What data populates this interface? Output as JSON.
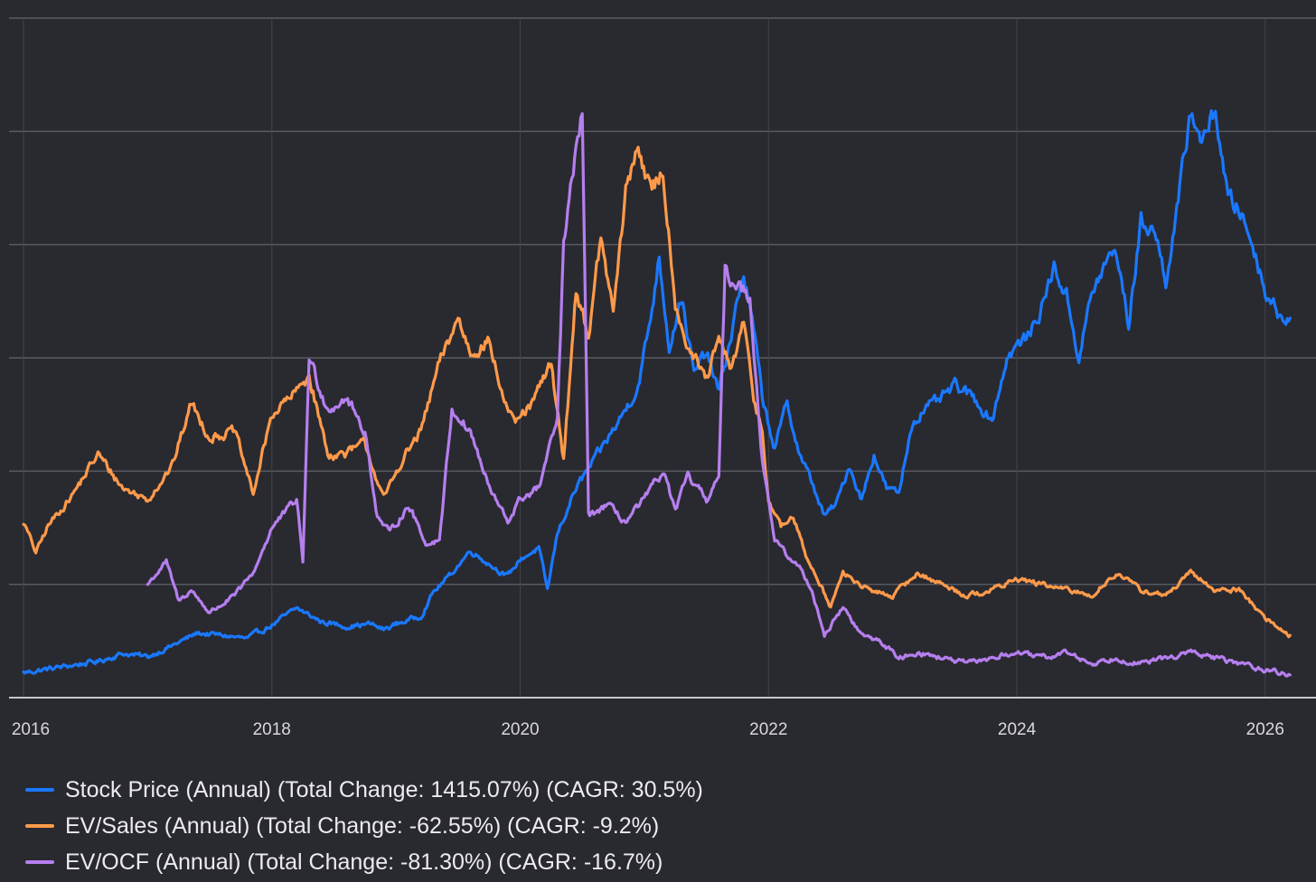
{
  "chart_data": {
    "type": "line",
    "title": "",
    "xlabel": "",
    "ylabel": "",
    "x_ticks": [
      "2016",
      "2018",
      "2020",
      "2022",
      "2024",
      "2026"
    ],
    "x_tick_values": [
      2016,
      2018,
      2020,
      2022,
      2024,
      2026
    ],
    "xlim": [
      2016,
      2026.3
    ],
    "ylim": [
      0,
      6
    ],
    "y_gridlines": [
      1,
      2,
      3,
      4,
      5,
      6
    ],
    "y_tick_labels_visible": false,
    "legend_position": "bottom-left",
    "series": [
      {
        "name": "Stock Price (Annual) (Total Change: 1415.07%) (CAGR: 30.5%)",
        "color": "#1a78ff",
        "points": [
          [
            2016.0,
            0.22
          ],
          [
            2016.3,
            0.27
          ],
          [
            2016.6,
            0.32
          ],
          [
            2016.8,
            0.39
          ],
          [
            2017.0,
            0.36
          ],
          [
            2017.2,
            0.46
          ],
          [
            2017.4,
            0.57
          ],
          [
            2017.6,
            0.55
          ],
          [
            2017.8,
            0.52
          ],
          [
            2018.0,
            0.64
          ],
          [
            2018.2,
            0.79
          ],
          [
            2018.4,
            0.67
          ],
          [
            2018.6,
            0.63
          ],
          [
            2018.8,
            0.65
          ],
          [
            2018.9,
            0.6
          ],
          [
            2019.0,
            0.65
          ],
          [
            2019.2,
            0.72
          ],
          [
            2019.3,
            0.93
          ],
          [
            2019.45,
            1.1
          ],
          [
            2019.6,
            1.3
          ],
          [
            2019.75,
            1.18
          ],
          [
            2019.9,
            1.07
          ],
          [
            2020.0,
            1.22
          ],
          [
            2020.15,
            1.32
          ],
          [
            2020.22,
            0.95
          ],
          [
            2020.3,
            1.45
          ],
          [
            2020.45,
            1.85
          ],
          [
            2020.6,
            2.1
          ],
          [
            2020.8,
            2.45
          ],
          [
            2020.95,
            2.75
          ],
          [
            2021.05,
            3.35
          ],
          [
            2021.12,
            3.9
          ],
          [
            2021.2,
            3.1
          ],
          [
            2021.3,
            3.55
          ],
          [
            2021.4,
            2.85
          ],
          [
            2021.5,
            3.05
          ],
          [
            2021.6,
            2.7
          ],
          [
            2021.7,
            3.2
          ],
          [
            2021.75,
            3.5
          ],
          [
            2021.8,
            3.75
          ],
          [
            2021.88,
            3.25
          ],
          [
            2021.95,
            2.65
          ],
          [
            2022.05,
            2.2
          ],
          [
            2022.15,
            2.6
          ],
          [
            2022.25,
            2.15
          ],
          [
            2022.35,
            1.9
          ],
          [
            2022.45,
            1.6
          ],
          [
            2022.55,
            1.72
          ],
          [
            2022.65,
            2.05
          ],
          [
            2022.75,
            1.75
          ],
          [
            2022.85,
            2.15
          ],
          [
            2022.95,
            1.85
          ],
          [
            2023.05,
            1.8
          ],
          [
            2023.15,
            2.4
          ],
          [
            2023.25,
            2.55
          ],
          [
            2023.35,
            2.6
          ],
          [
            2023.5,
            2.75
          ],
          [
            2023.65,
            2.65
          ],
          [
            2023.8,
            2.45
          ],
          [
            2023.92,
            3.0
          ],
          [
            2024.0,
            3.1
          ],
          [
            2024.1,
            3.2
          ],
          [
            2024.2,
            3.45
          ],
          [
            2024.3,
            3.8
          ],
          [
            2024.4,
            3.55
          ],
          [
            2024.5,
            3.0
          ],
          [
            2024.6,
            3.55
          ],
          [
            2024.7,
            3.8
          ],
          [
            2024.8,
            3.95
          ],
          [
            2024.9,
            3.3
          ],
          [
            2025.0,
            4.2
          ],
          [
            2025.1,
            4.15
          ],
          [
            2025.2,
            3.7
          ],
          [
            2025.3,
            4.35
          ],
          [
            2025.4,
            5.2
          ],
          [
            2025.5,
            4.9
          ],
          [
            2025.6,
            5.2
          ],
          [
            2025.7,
            4.4
          ],
          [
            2025.8,
            4.3
          ],
          [
            2025.9,
            4.0
          ],
          [
            2026.0,
            3.6
          ],
          [
            2026.1,
            3.4
          ],
          [
            2026.2,
            3.35
          ]
        ]
      },
      {
        "name": "EV/Sales (Annual) (Total Change: -62.55%) (CAGR: -9.2%)",
        "color": "#ff9a4a",
        "points": [
          [
            2016.0,
            1.55
          ],
          [
            2016.1,
            1.28
          ],
          [
            2016.2,
            1.52
          ],
          [
            2016.4,
            1.8
          ],
          [
            2016.6,
            2.15
          ],
          [
            2016.8,
            1.85
          ],
          [
            2017.0,
            1.75
          ],
          [
            2017.2,
            2.05
          ],
          [
            2017.35,
            2.6
          ],
          [
            2017.5,
            2.3
          ],
          [
            2017.7,
            2.35
          ],
          [
            2017.85,
            1.8
          ],
          [
            2018.0,
            2.5
          ],
          [
            2018.2,
            2.7
          ],
          [
            2018.3,
            2.85
          ],
          [
            2018.45,
            2.15
          ],
          [
            2018.6,
            2.15
          ],
          [
            2018.75,
            2.25
          ],
          [
            2018.9,
            1.75
          ],
          [
            2019.05,
            2.1
          ],
          [
            2019.2,
            2.35
          ],
          [
            2019.35,
            2.95
          ],
          [
            2019.5,
            3.35
          ],
          [
            2019.6,
            3.05
          ],
          [
            2019.75,
            3.15
          ],
          [
            2019.85,
            2.7
          ],
          [
            2019.95,
            2.4
          ],
          [
            2020.1,
            2.6
          ],
          [
            2020.25,
            2.95
          ],
          [
            2020.35,
            2.1
          ],
          [
            2020.45,
            3.6
          ],
          [
            2020.55,
            3.2
          ],
          [
            2020.65,
            4.05
          ],
          [
            2020.75,
            3.4
          ],
          [
            2020.85,
            4.45
          ],
          [
            2020.95,
            4.9
          ],
          [
            2021.05,
            4.45
          ],
          [
            2021.15,
            4.65
          ],
          [
            2021.25,
            3.5
          ],
          [
            2021.35,
            3.1
          ],
          [
            2021.5,
            2.8
          ],
          [
            2021.6,
            3.15
          ],
          [
            2021.7,
            2.9
          ],
          [
            2021.8,
            3.3
          ],
          [
            2021.88,
            2.65
          ],
          [
            2021.95,
            2.35
          ],
          [
            2022.0,
            1.75
          ],
          [
            2022.1,
            1.5
          ],
          [
            2022.2,
            1.6
          ],
          [
            2022.3,
            1.25
          ],
          [
            2022.4,
            1.05
          ],
          [
            2022.5,
            0.8
          ],
          [
            2022.6,
            1.1
          ],
          [
            2022.8,
            0.95
          ],
          [
            2023.0,
            0.9
          ],
          [
            2023.2,
            1.1
          ],
          [
            2023.4,
            1.0
          ],
          [
            2023.6,
            0.9
          ],
          [
            2023.8,
            0.95
          ],
          [
            2024.0,
            1.05
          ],
          [
            2024.2,
            1.0
          ],
          [
            2024.4,
            0.95
          ],
          [
            2024.6,
            0.9
          ],
          [
            2024.8,
            1.1
          ],
          [
            2025.0,
            0.95
          ],
          [
            2025.2,
            0.9
          ],
          [
            2025.4,
            1.1
          ],
          [
            2025.6,
            0.95
          ],
          [
            2025.8,
            0.95
          ],
          [
            2026.0,
            0.7
          ],
          [
            2026.2,
            0.55
          ]
        ]
      },
      {
        "name": "EV/OCF (Annual) (Total Change: -81.30%) (CAGR: -16.7%)",
        "color": "#b57fee",
        "points": [
          [
            2017.0,
            1.0
          ],
          [
            2017.15,
            1.2
          ],
          [
            2017.25,
            0.85
          ],
          [
            2017.35,
            0.95
          ],
          [
            2017.5,
            0.75
          ],
          [
            2017.7,
            0.9
          ],
          [
            2017.85,
            1.1
          ],
          [
            2018.0,
            1.5
          ],
          [
            2018.2,
            1.75
          ],
          [
            2018.25,
            1.2
          ],
          [
            2018.3,
            3.0
          ],
          [
            2018.45,
            2.55
          ],
          [
            2018.6,
            2.65
          ],
          [
            2018.75,
            2.35
          ],
          [
            2018.85,
            1.6
          ],
          [
            2018.95,
            1.45
          ],
          [
            2019.1,
            1.7
          ],
          [
            2019.25,
            1.35
          ],
          [
            2019.35,
            1.4
          ],
          [
            2019.45,
            2.55
          ],
          [
            2019.6,
            2.35
          ],
          [
            2019.75,
            1.85
          ],
          [
            2019.9,
            1.55
          ],
          [
            2020.0,
            1.75
          ],
          [
            2020.15,
            1.85
          ],
          [
            2020.3,
            2.45
          ],
          [
            2020.35,
            4.0
          ],
          [
            2020.45,
            4.8
          ],
          [
            2020.5,
            5.2
          ],
          [
            2020.55,
            1.6
          ],
          [
            2020.7,
            1.7
          ],
          [
            2020.85,
            1.55
          ],
          [
            2021.0,
            1.75
          ],
          [
            2021.15,
            2.0
          ],
          [
            2021.25,
            1.65
          ],
          [
            2021.35,
            1.95
          ],
          [
            2021.5,
            1.75
          ],
          [
            2021.6,
            1.95
          ],
          [
            2021.65,
            3.75
          ],
          [
            2021.75,
            3.65
          ],
          [
            2021.85,
            3.55
          ],
          [
            2021.95,
            2.1
          ],
          [
            2022.05,
            1.4
          ],
          [
            2022.15,
            1.25
          ],
          [
            2022.25,
            1.15
          ],
          [
            2022.35,
            0.95
          ],
          [
            2022.45,
            0.55
          ],
          [
            2022.6,
            0.8
          ],
          [
            2022.75,
            0.55
          ],
          [
            2022.9,
            0.5
          ],
          [
            2023.05,
            0.35
          ],
          [
            2023.2,
            0.4
          ],
          [
            2023.4,
            0.35
          ],
          [
            2023.6,
            0.3
          ],
          [
            2023.8,
            0.35
          ],
          [
            2024.0,
            0.4
          ],
          [
            2024.2,
            0.35
          ],
          [
            2024.4,
            0.4
          ],
          [
            2024.6,
            0.3
          ],
          [
            2024.8,
            0.35
          ],
          [
            2025.0,
            0.3
          ],
          [
            2025.2,
            0.35
          ],
          [
            2025.4,
            0.4
          ],
          [
            2025.6,
            0.35
          ],
          [
            2025.8,
            0.3
          ],
          [
            2026.0,
            0.25
          ],
          [
            2026.2,
            0.2
          ]
        ]
      }
    ]
  }
}
